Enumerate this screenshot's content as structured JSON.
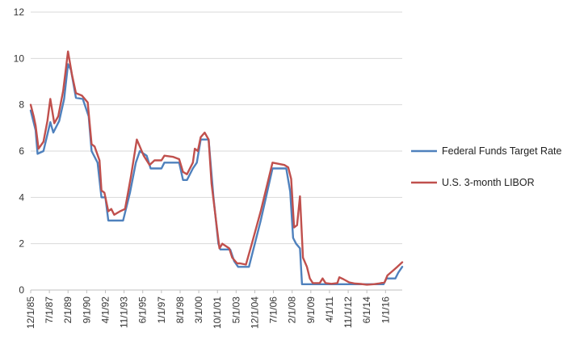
{
  "chart_data": {
    "type": "line",
    "title": "",
    "xlabel": "",
    "ylabel": "",
    "ylim": [
      0,
      12
    ],
    "y_ticks": [
      "0",
      "2",
      "4",
      "6",
      "8",
      "10",
      "12"
    ],
    "x_tick_labels": [
      "12/1/85",
      "7/1/87",
      "2/1/89",
      "9/1/90",
      "4/1/92",
      "11/1/93",
      "6/1/95",
      "1/1/97",
      "8/1/98",
      "3/1/00",
      "10/1/01",
      "5/1/03",
      "12/1/04",
      "7/1/06",
      "2/1/08",
      "9/1/09",
      "4/1/11",
      "11/1/12",
      "6/1/14",
      "1/1/16"
    ],
    "x_range": [
      "1985-12",
      "2017-06"
    ],
    "grid": "horizontal",
    "legend_position": "right",
    "series": [
      {
        "name": "Federal Funds Target Rate",
        "color": "#4f81bd",
        "points": [
          [
            "1985-12",
            7.75
          ],
          [
            "1986-05",
            6.9
          ],
          [
            "1986-07",
            5.88
          ],
          [
            "1987-01",
            6.0
          ],
          [
            "1987-08",
            7.25
          ],
          [
            "1987-11",
            6.8
          ],
          [
            "1988-05",
            7.3
          ],
          [
            "1988-10",
            8.25
          ],
          [
            "1989-02",
            9.75
          ],
          [
            "1989-05",
            9.5
          ],
          [
            "1989-10",
            8.3
          ],
          [
            "1990-05",
            8.25
          ],
          [
            "1990-11",
            7.5
          ],
          [
            "1991-02",
            6.0
          ],
          [
            "1991-08",
            5.5
          ],
          [
            "1991-12",
            4.0
          ],
          [
            "1992-04",
            4.0
          ],
          [
            "1992-07",
            3.0
          ],
          [
            "1993-10",
            3.0
          ],
          [
            "1994-05",
            4.2
          ],
          [
            "1994-11",
            5.5
          ],
          [
            "1995-03",
            6.0
          ],
          [
            "1995-10",
            5.8
          ],
          [
            "1996-02",
            5.25
          ],
          [
            "1997-01",
            5.25
          ],
          [
            "1997-04",
            5.5
          ],
          [
            "1998-07",
            5.5
          ],
          [
            "1998-11",
            4.75
          ],
          [
            "1999-03",
            4.75
          ],
          [
            "1999-09",
            5.25
          ],
          [
            "2000-01",
            5.5
          ],
          [
            "2000-05",
            6.5
          ],
          [
            "2001-01",
            6.5
          ],
          [
            "2001-06",
            4.0
          ],
          [
            "2001-11",
            2.0
          ],
          [
            "2002-01",
            1.75
          ],
          [
            "2002-11",
            1.75
          ],
          [
            "2003-03",
            1.25
          ],
          [
            "2003-07",
            1.0
          ],
          [
            "2004-06",
            1.0
          ],
          [
            "2005-06",
            3.0
          ],
          [
            "2006-06",
            5.25
          ],
          [
            "2007-08",
            5.25
          ],
          [
            "2007-12",
            4.25
          ],
          [
            "2008-03",
            2.25
          ],
          [
            "2008-06",
            2.0
          ],
          [
            "2008-10",
            1.8
          ],
          [
            "2008-12",
            0.25
          ],
          [
            "2015-11",
            0.25
          ],
          [
            "2016-02",
            0.5
          ],
          [
            "2016-11",
            0.5
          ],
          [
            "2017-02",
            0.75
          ],
          [
            "2017-06",
            1.0
          ]
        ]
      },
      {
        "name": "U.S. 3-month LIBOR",
        "color": "#c0504d",
        "points": [
          [
            "1985-12",
            8.0
          ],
          [
            "1986-03",
            7.5
          ],
          [
            "1986-05",
            7.1
          ],
          [
            "1986-08",
            6.1
          ],
          [
            "1987-01",
            6.4
          ],
          [
            "1987-05",
            7.3
          ],
          [
            "1987-08",
            8.25
          ],
          [
            "1987-12",
            7.2
          ],
          [
            "1988-04",
            7.5
          ],
          [
            "1988-09",
            8.6
          ],
          [
            "1989-02",
            10.3
          ],
          [
            "1989-06",
            9.3
          ],
          [
            "1989-10",
            8.5
          ],
          [
            "1990-04",
            8.4
          ],
          [
            "1990-10",
            8.1
          ],
          [
            "1991-02",
            6.3
          ],
          [
            "1991-05",
            6.2
          ],
          [
            "1991-10",
            5.6
          ],
          [
            "1991-12",
            4.3
          ],
          [
            "1992-03",
            4.2
          ],
          [
            "1992-07",
            3.4
          ],
          [
            "1992-10",
            3.5
          ],
          [
            "1993-01",
            3.25
          ],
          [
            "1993-07",
            3.4
          ],
          [
            "1993-12",
            3.5
          ],
          [
            "1994-03",
            4.2
          ],
          [
            "1994-06",
            4.9
          ],
          [
            "1994-12",
            6.5
          ],
          [
            "1995-03",
            6.2
          ],
          [
            "1995-07",
            5.8
          ],
          [
            "1996-01",
            5.4
          ],
          [
            "1996-06",
            5.6
          ],
          [
            "1997-01",
            5.6
          ],
          [
            "1997-04",
            5.8
          ],
          [
            "1998-01",
            5.75
          ],
          [
            "1998-07",
            5.65
          ],
          [
            "1998-11",
            5.1
          ],
          [
            "1999-03",
            5.0
          ],
          [
            "1999-09",
            5.5
          ],
          [
            "1999-11",
            6.1
          ],
          [
            "2000-02",
            6.0
          ],
          [
            "2000-05",
            6.6
          ],
          [
            "2000-09",
            6.8
          ],
          [
            "2001-01",
            6.5
          ],
          [
            "2001-04",
            4.6
          ],
          [
            "2001-10",
            2.5
          ],
          [
            "2001-12",
            1.8
          ],
          [
            "2002-03",
            2.0
          ],
          [
            "2002-10",
            1.8
          ],
          [
            "2003-01",
            1.4
          ],
          [
            "2003-06",
            1.15
          ],
          [
            "2003-09",
            1.15
          ],
          [
            "2004-03",
            1.1
          ],
          [
            "2004-09",
            2.0
          ],
          [
            "2005-06",
            3.4
          ],
          [
            "2006-06",
            5.5
          ],
          [
            "2007-06",
            5.4
          ],
          [
            "2007-10",
            5.3
          ],
          [
            "2008-01",
            4.8
          ],
          [
            "2008-04",
            2.7
          ],
          [
            "2008-07",
            2.8
          ],
          [
            "2008-10",
            4.05
          ],
          [
            "2009-01",
            1.4
          ],
          [
            "2009-05",
            1.0
          ],
          [
            "2009-08",
            0.5
          ],
          [
            "2009-11",
            0.3
          ],
          [
            "2010-06",
            0.3
          ],
          [
            "2010-09",
            0.5
          ],
          [
            "2010-12",
            0.3
          ],
          [
            "2011-06",
            0.27
          ],
          [
            "2011-12",
            0.3
          ],
          [
            "2012-02",
            0.55
          ],
          [
            "2012-06",
            0.47
          ],
          [
            "2012-12",
            0.33
          ],
          [
            "2013-06",
            0.28
          ],
          [
            "2013-12",
            0.26
          ],
          [
            "2014-06",
            0.23
          ],
          [
            "2015-01",
            0.25
          ],
          [
            "2015-06",
            0.28
          ],
          [
            "2015-12",
            0.33
          ],
          [
            "2016-03",
            0.63
          ],
          [
            "2016-09",
            0.85
          ],
          [
            "2017-01",
            1.0
          ],
          [
            "2017-06",
            1.2
          ]
        ]
      }
    ]
  }
}
